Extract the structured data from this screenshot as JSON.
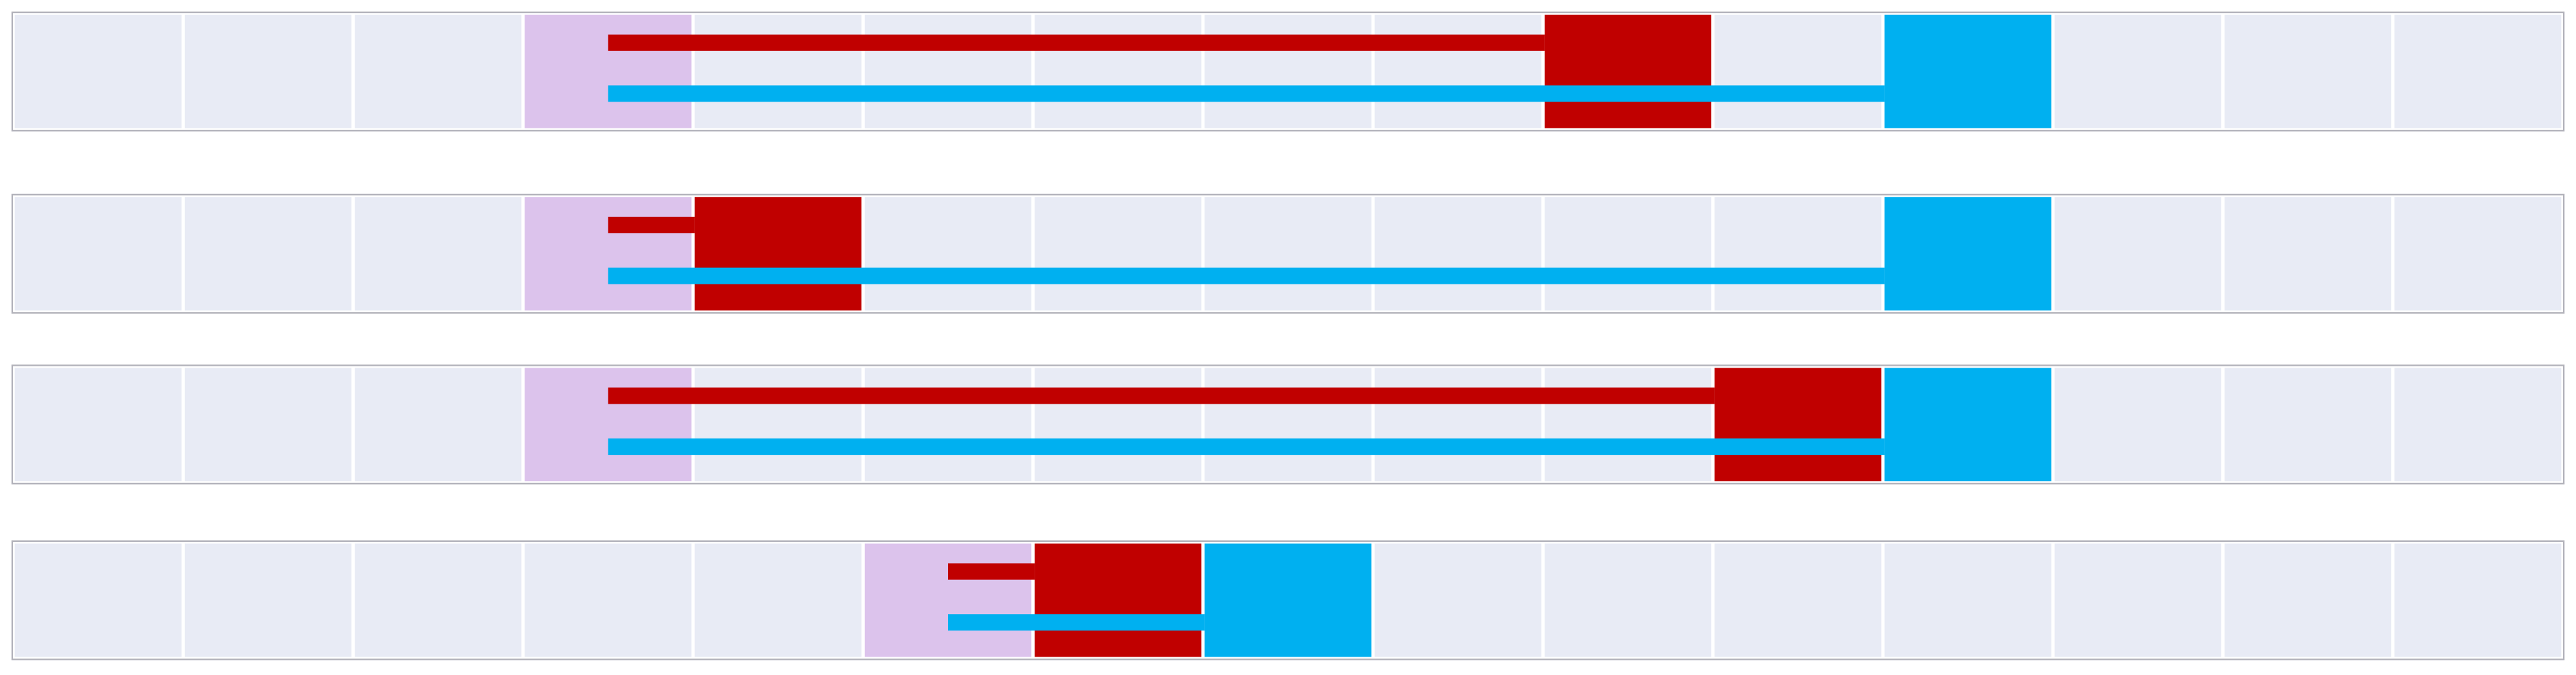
{
  "grid": {
    "columns": 15
  },
  "rows": [
    {
      "start": 3,
      "red": 9,
      "blue": 11
    },
    {
      "start": 3,
      "red": 4,
      "blue": 11
    },
    {
      "start": 3,
      "red": 10,
      "blue": 11
    },
    {
      "start": 5,
      "red": 6,
      "blue": 7
    }
  ]
}
